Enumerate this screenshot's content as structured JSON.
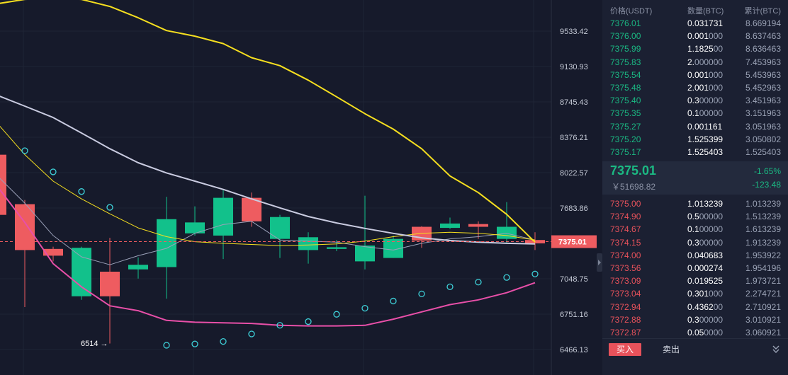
{
  "chart": {
    "y_axis_ticks": [
      "9533.42",
      "9130.93",
      "8745.43",
      "8376.21",
      "8022.57",
      "7683.86",
      "7048.75",
      "6751.16",
      "6466.13"
    ],
    "current_price_label": "7375.01",
    "low_annotation": "6514 →",
    "colors": {
      "up": "#12c18b",
      "down": "#ee5c60",
      "ma_yellow": "#f6df1f",
      "ma_pink": "#e84fa8",
      "ma_white": "#c9cbe0",
      "sar": "#3ed1d9"
    }
  },
  "chart_data": {
    "type": "candlestick",
    "y_scale": "log",
    "candles": [
      {
        "open": 8200,
        "close": 7620,
        "high": 8240,
        "low": 7560
      },
      {
        "open": 7720,
        "close": 7300,
        "high": 7760,
        "low": 6810
      },
      {
        "open": 7310,
        "close": 7250,
        "high": 7330,
        "low": 7200
      },
      {
        "open": 6900,
        "close": 7320,
        "high": 7330,
        "low": 6870
      },
      {
        "open": 7110,
        "close": 6900,
        "high": 7410,
        "low": 6514
      },
      {
        "open": 7130,
        "close": 7170,
        "high": 7235,
        "low": 7050
      },
      {
        "open": 7150,
        "close": 7580,
        "high": 7790,
        "low": 6880
      },
      {
        "open": 7450,
        "close": 7550,
        "high": 7700,
        "low": 7430
      },
      {
        "open": 7430,
        "close": 7780,
        "high": 7860,
        "low": 7220
      },
      {
        "open": 7780,
        "close": 7560,
        "high": 7830,
        "low": 7510
      },
      {
        "open": 7400,
        "close": 7600,
        "high": 7620,
        "low": 7230
      },
      {
        "open": 7300,
        "close": 7415,
        "high": 7460,
        "low": 7180
      },
      {
        "open": 7310,
        "close": 7325,
        "high": 7390,
        "low": 7290
      },
      {
        "open": 7200,
        "close": 7340,
        "high": 7800,
        "low": 7130
      },
      {
        "open": 7230,
        "close": 7400,
        "high": 7430,
        "low": 7230
      },
      {
        "open": 7510,
        "close": 7385,
        "high": 7515,
        "low": 7320
      },
      {
        "open": 7500,
        "close": 7540,
        "high": 7595,
        "low": 7490
      },
      {
        "open": 7535,
        "close": 7510,
        "high": 7560,
        "low": 7400
      },
      {
        "open": 7400,
        "close": 7510,
        "high": 7740,
        "low": 7360
      },
      {
        "open": 7390,
        "close": 7360,
        "high": 7460,
        "low": 7300
      }
    ],
    "ma_yellow_thick": [
      9855,
      9910,
      9920,
      9910,
      9825,
      9690,
      9540,
      9475,
      9390,
      9230,
      9140,
      8980,
      8800,
      8620,
      8460,
      8260,
      7990,
      7830,
      7625,
      7370
    ],
    "ma_white": [
      8820,
      8700,
      8580,
      8420,
      8260,
      8120,
      8020,
      7940,
      7860,
      7770,
      7685,
      7605,
      7545,
      7495,
      7450,
      7410,
      7385,
      7370,
      7360,
      7355
    ],
    "ma_yellow_thin": [
      8530,
      8200,
      7940,
      7770,
      7630,
      7500,
      7420,
      7375,
      7360,
      7350,
      7340,
      7345,
      7355,
      7380,
      7420,
      7450,
      7460,
      7450,
      7430,
      7390
    ],
    "ma_grey_thin": [
      8000,
      7730,
      7430,
      7240,
      7170,
      7250,
      7315,
      7450,
      7530,
      7560,
      7390,
      7380,
      7370,
      7330,
      7300,
      7360,
      7400,
      7420,
      7450,
      7390
    ],
    "ma_pink": [
      7900,
      7550,
      7180,
      6980,
      6820,
      6780,
      6700,
      6685,
      6680,
      6675,
      6660,
      6655,
      6655,
      6660,
      6710,
      6770,
      6830,
      6870,
      6930,
      7015
    ],
    "sar": [
      8530,
      8240,
      8030,
      7840,
      7690,
      null,
      6500,
      6510,
      6530,
      6590,
      6660,
      6690,
      6750,
      6800,
      6860,
      6920,
      6980,
      7020,
      7060,
      7090
    ]
  },
  "orderbook": {
    "headers": {
      "price": "价格(USDT)",
      "amount": "数量(BTC)",
      "total": "累计(BTC)"
    },
    "asks": [
      {
        "price": "7376.01",
        "amt_main": "0.031731",
        "amt_rest": "",
        "total": "8.669194"
      },
      {
        "price": "7376.00",
        "amt_main": "0.001",
        "amt_rest": "000",
        "total": "8.637463"
      },
      {
        "price": "7375.99",
        "amt_main": "1.1825",
        "amt_rest": "00",
        "total": "8.636463"
      },
      {
        "price": "7375.83",
        "amt_main": "2.",
        "amt_rest": "000000",
        "total": "7.453963"
      },
      {
        "price": "7375.54",
        "amt_main": "0.001",
        "amt_rest": "000",
        "total": "5.453963"
      },
      {
        "price": "7375.48",
        "amt_main": "2.001",
        "amt_rest": "000",
        "total": "5.452963"
      },
      {
        "price": "7375.40",
        "amt_main": "0.3",
        "amt_rest": "00000",
        "total": "3.451963"
      },
      {
        "price": "7375.35",
        "amt_main": "0.1",
        "amt_rest": "00000",
        "total": "3.151963"
      },
      {
        "price": "7375.27",
        "amt_main": "0.001161",
        "amt_rest": "",
        "total": "3.051963"
      },
      {
        "price": "7375.20",
        "amt_main": "1.525399",
        "amt_rest": "",
        "total": "3.050802"
      },
      {
        "price": "7375.17",
        "amt_main": "1.525403",
        "amt_rest": "",
        "total": "1.525403"
      }
    ],
    "last_price": "7375.01",
    "change_pct": "-1.65%",
    "cny_price": "￥51698.82",
    "change_abs": "-123.48",
    "bids": [
      {
        "price": "7375.00",
        "amt_main": "1.013239",
        "amt_rest": "",
        "total": "1.013239"
      },
      {
        "price": "7374.90",
        "amt_main": "0.5",
        "amt_rest": "00000",
        "total": "1.513239"
      },
      {
        "price": "7374.67",
        "amt_main": "0.1",
        "amt_rest": "00000",
        "total": "1.613239"
      },
      {
        "price": "7374.15",
        "amt_main": "0.3",
        "amt_rest": "00000",
        "total": "1.913239"
      },
      {
        "price": "7374.00",
        "amt_main": "0.040683",
        "amt_rest": "",
        "total": "1.953922"
      },
      {
        "price": "7373.56",
        "amt_main": "0.000274",
        "amt_rest": "",
        "total": "1.954196"
      },
      {
        "price": "7373.09",
        "amt_main": "0.019525",
        "amt_rest": "",
        "total": "1.973721"
      },
      {
        "price": "7373.04",
        "amt_main": "0.301",
        "amt_rest": "000",
        "total": "2.274721"
      },
      {
        "price": "7372.94",
        "amt_main": "0.4362",
        "amt_rest": "00",
        "total": "2.710921"
      },
      {
        "price": "7372.88",
        "amt_main": "0.3",
        "amt_rest": "00000",
        "total": "3.010921"
      },
      {
        "price": "7372.87",
        "amt_main": "0.05",
        "amt_rest": "0000",
        "total": "3.060921"
      }
    ],
    "footer": {
      "buy_label": "买入",
      "sell_label": "卖出",
      "collapse_icon": "double-chevron-down-icon"
    }
  }
}
